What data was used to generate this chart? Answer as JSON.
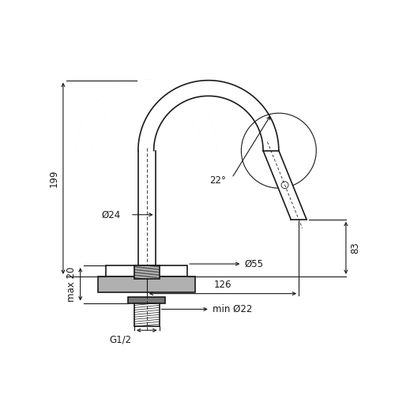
{
  "bg_color": "#ffffff",
  "line_color": "#1a1a1a",
  "dim_color": "#1a1a1a",
  "gray_color": "#b0b0b0",
  "figsize": [
    5.0,
    5.0
  ],
  "dpi": 100,
  "dims": {
    "d199": "199",
    "d22": "22°",
    "d126": "126",
    "d83": "83",
    "d24": "Ø24",
    "d55": "Ø55",
    "dmin22": "min Ø22",
    "dG12": "G1/2",
    "dmax20": "max 20"
  }
}
